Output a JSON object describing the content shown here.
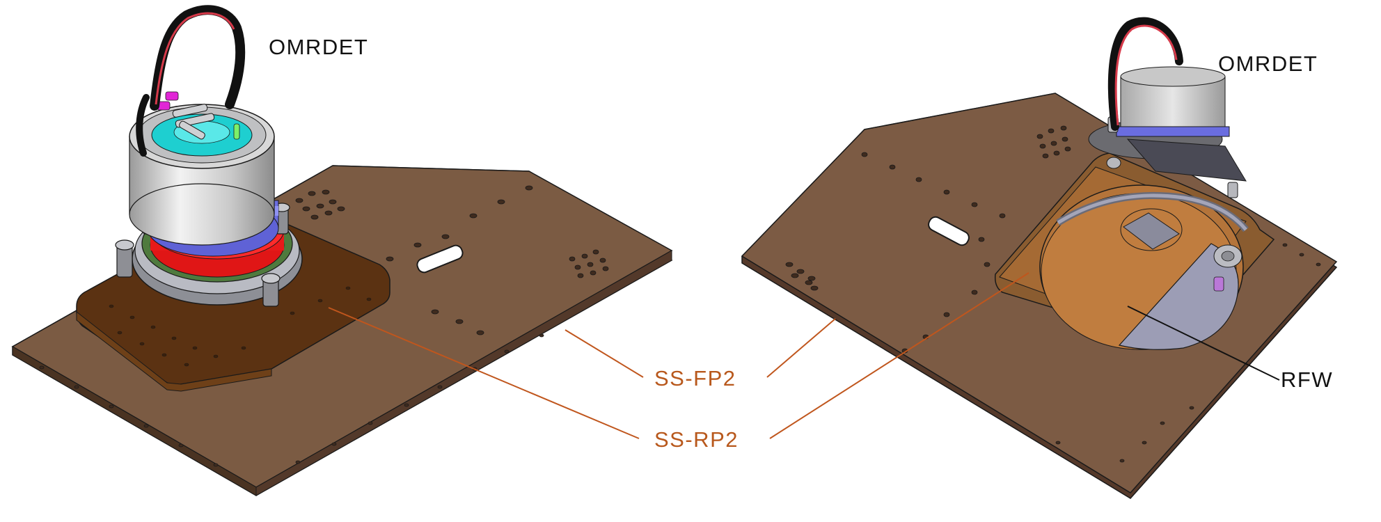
{
  "labels": {
    "omrdet_left": "OMRDET",
    "omrdet_right": "OMRDET",
    "ss_fp2": "SS-FP2",
    "ss_rp2": "SS-RP2",
    "rfw": "RFW"
  },
  "colors": {
    "plate_brown": "#7a5a43",
    "rear_plate": "#5c3210",
    "callout_orange": "#c0561d",
    "label_black": "#111111"
  }
}
